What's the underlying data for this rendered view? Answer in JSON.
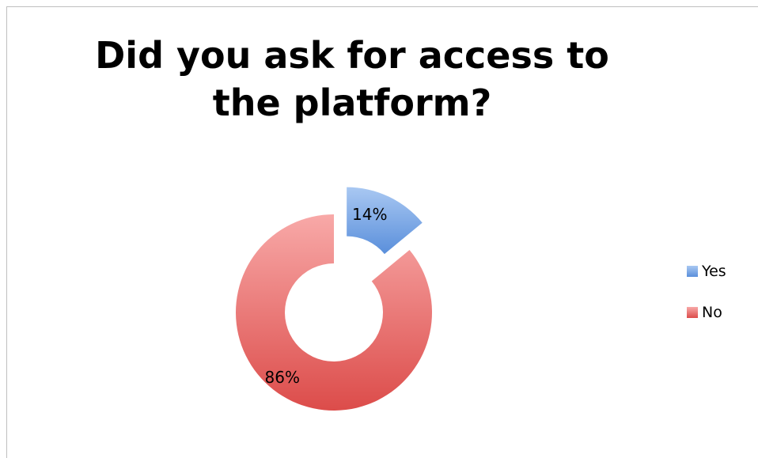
{
  "chart_data": {
    "type": "pie",
    "title": "Did you ask for access to the platform?",
    "categories": [
      "Yes",
      "No"
    ],
    "values": [
      14,
      86
    ],
    "value_labels": [
      "14%",
      "86%"
    ],
    "colors": [
      "#6f9fe0",
      "#e8605e"
    ],
    "legend": "right"
  }
}
